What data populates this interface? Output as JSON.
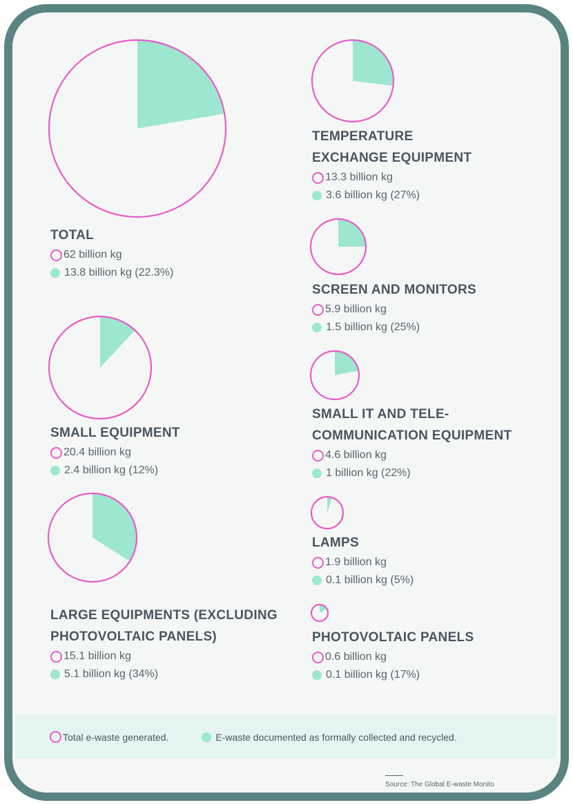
{
  "chart_data": {
    "type": "pie",
    "colors": {
      "total_outline": "#e85bc8",
      "recycled_fill": "#9de6cf",
      "frame": "#5a8482"
    },
    "categories": [
      {
        "title": [
          "TOTAL"
        ],
        "generated": "62 billion kg",
        "recycled": "13.8 billion kg (22.3%)",
        "generated_value": 62,
        "recycled_value": 13.8,
        "recycled_pct": 22.3
      },
      {
        "title": [
          "SMALL EQUIPMENT"
        ],
        "generated": "20.4 billion kg",
        "recycled": "2.4 billion kg (12%)",
        "generated_value": 20.4,
        "recycled_value": 2.4,
        "recycled_pct": 12
      },
      {
        "title": [
          "LARGE EQUIPMENTS (EXCLUDING",
          "PHOTOVOLTAIC PANELS)"
        ],
        "generated": "15.1 billion kg",
        "recycled": "5.1 billion kg (34%)",
        "generated_value": 15.1,
        "recycled_value": 5.1,
        "recycled_pct": 34
      },
      {
        "title": [
          "TEMPERATURE",
          "EXCHANGE EQUIPMENT"
        ],
        "generated": "13.3 billion kg",
        "recycled": "3.6 billion kg (27%)",
        "generated_value": 13.3,
        "recycled_value": 3.6,
        "recycled_pct": 27
      },
      {
        "title": [
          "SCREEN AND MONITORS"
        ],
        "generated": "5.9 billion kg",
        "recycled": "1.5 billion kg (25%)",
        "generated_value": 5.9,
        "recycled_value": 1.5,
        "recycled_pct": 25
      },
      {
        "title": [
          "SMALL IT AND TELE-",
          "COMMUNICATION EQUIPMENT"
        ],
        "generated": "4.6 billion kg",
        "recycled": "1 billion kg (22%)",
        "generated_value": 4.6,
        "recycled_value": 1,
        "recycled_pct": 22
      },
      {
        "title": [
          "LAMPS"
        ],
        "generated": "1.9 billion kg",
        "recycled": "0.1 billion kg (5%)",
        "generated_value": 1.9,
        "recycled_value": 0.1,
        "recycled_pct": 5
      },
      {
        "title": [
          "PHOTOVOLTAIC PANELS"
        ],
        "generated": "0.6 billion kg",
        "recycled": "0.1 billion kg (17%)",
        "generated_value": 0.6,
        "recycled_value": 0.1,
        "recycled_pct": 17
      }
    ],
    "legend": {
      "generated": "Total e-waste generated.",
      "recycled": "E-waste documented as formally collected and recycled."
    },
    "source": "Source: The Global E-waste Monito"
  }
}
